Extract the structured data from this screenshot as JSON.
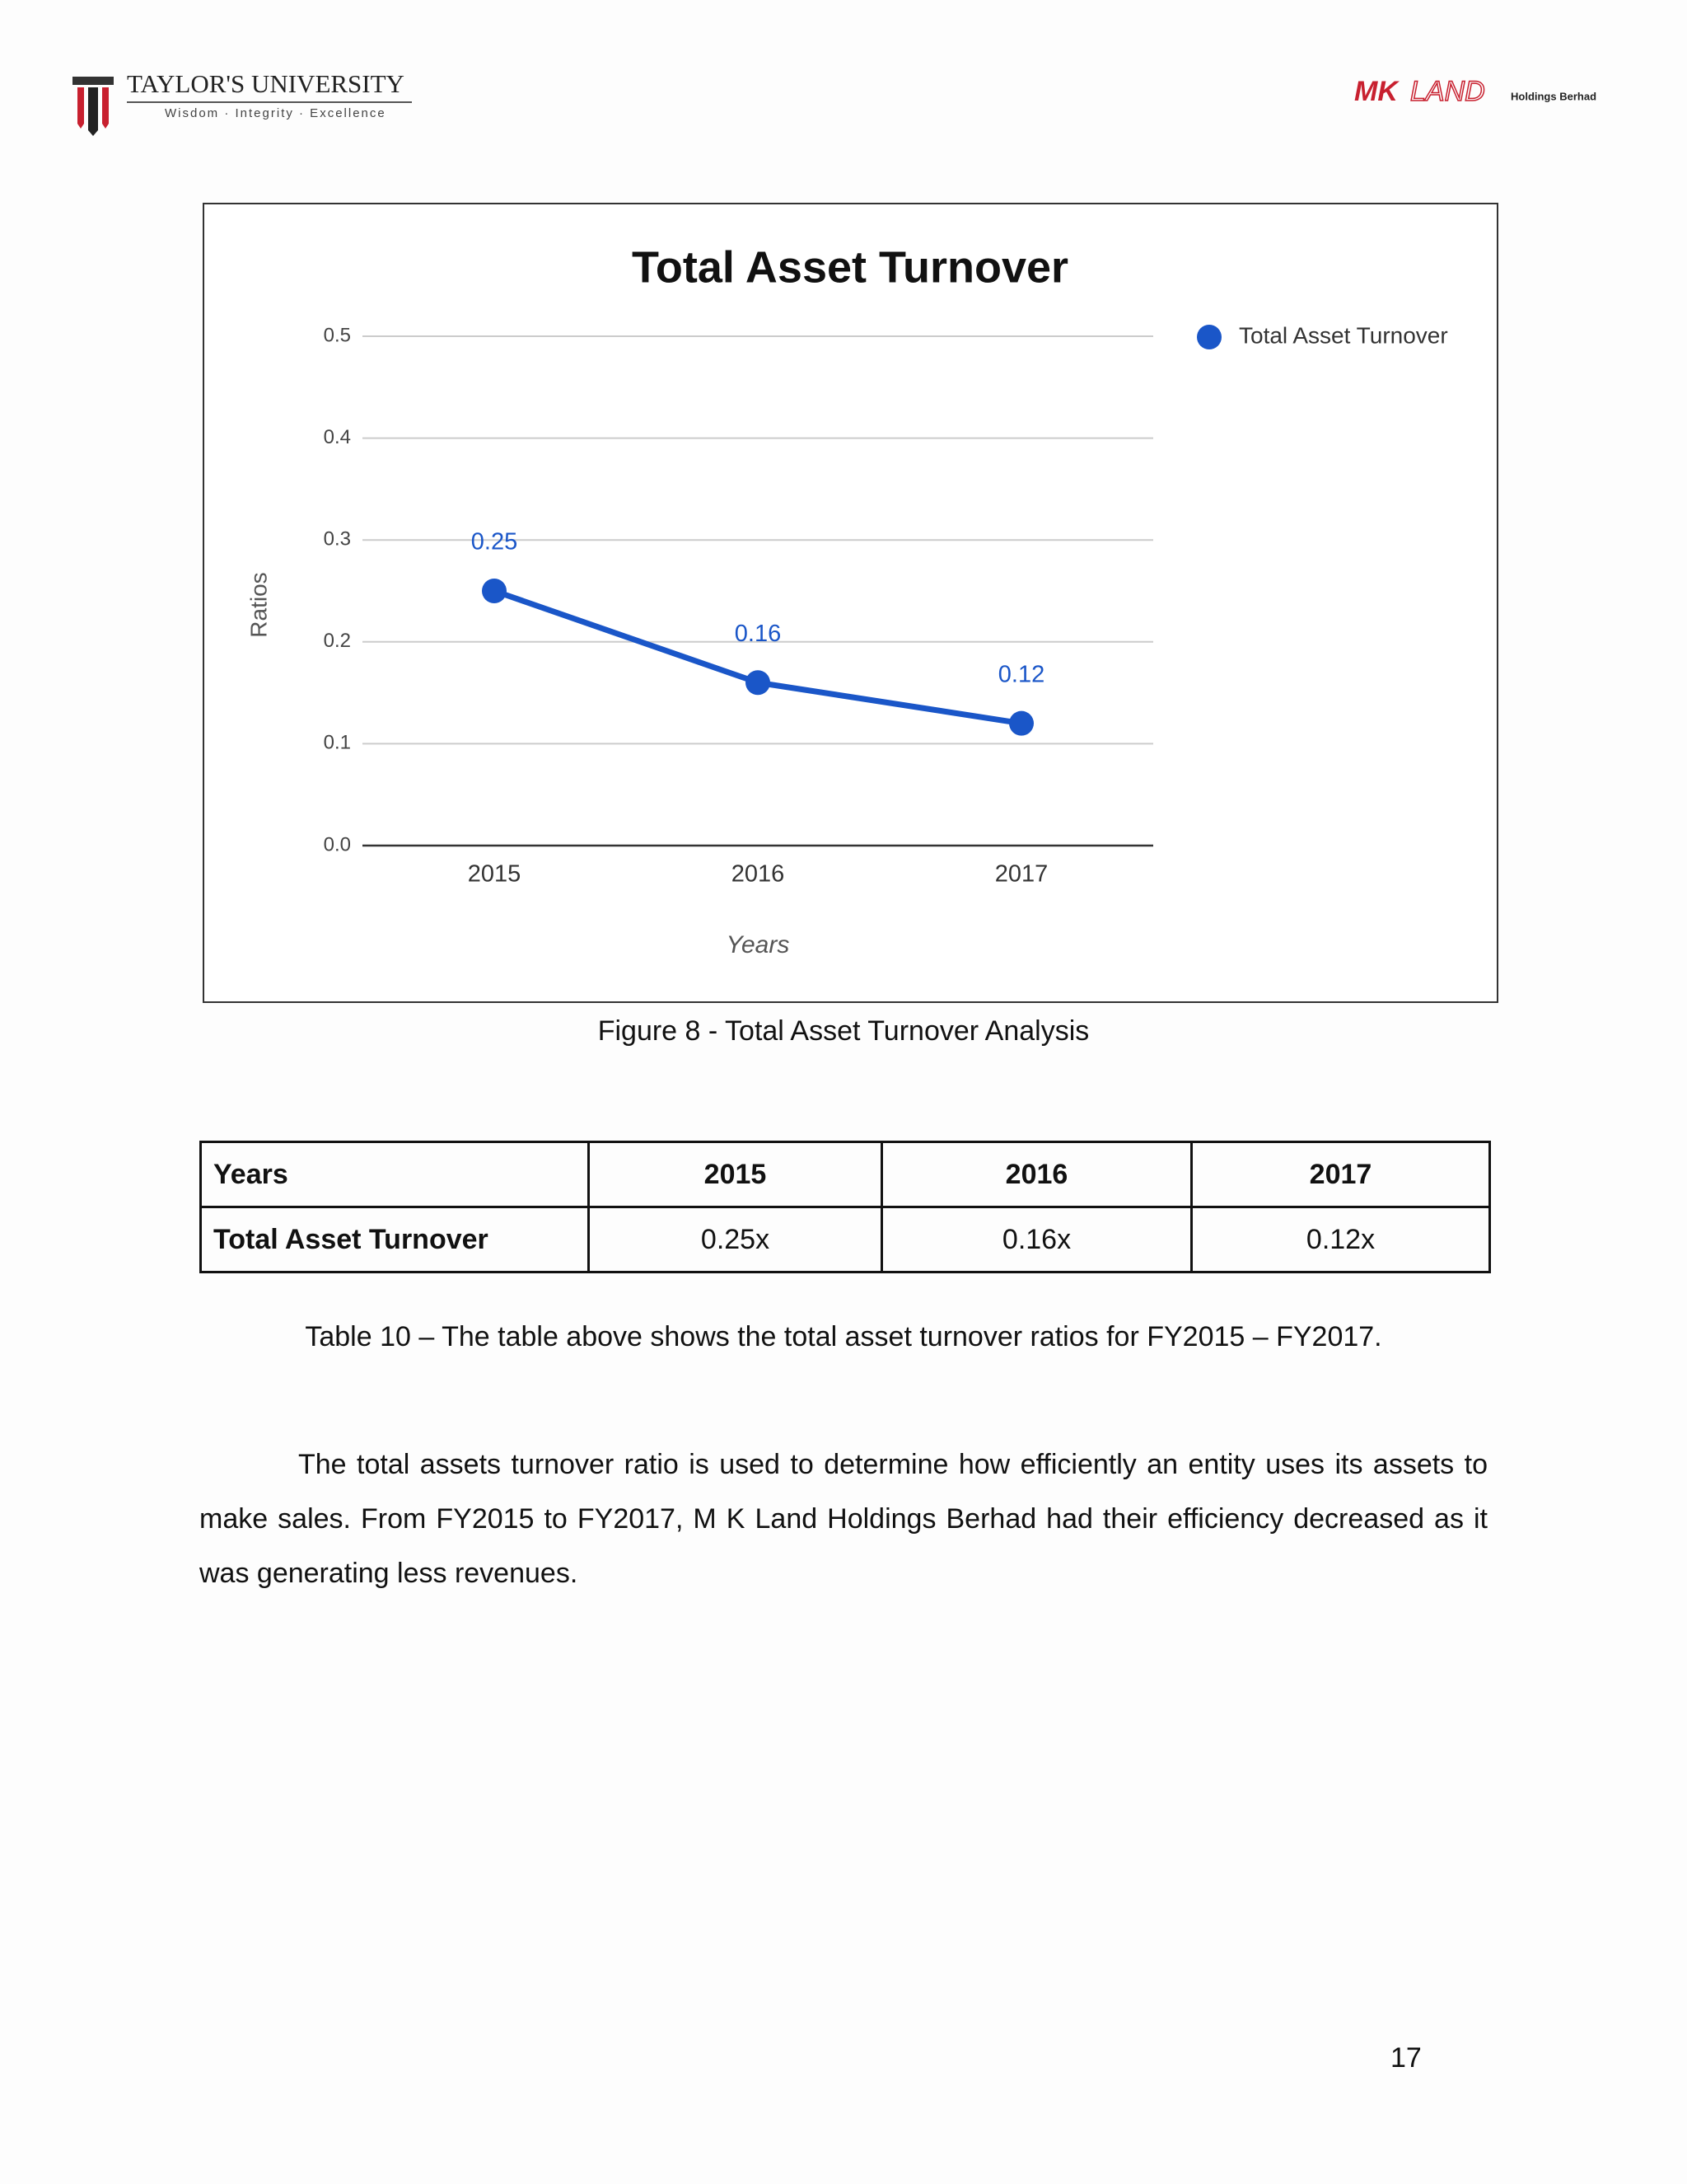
{
  "header": {
    "university": "TAYLOR'S UNIVERSITY",
    "motto": "Wisdom · Integrity · Excellence",
    "company_mark": "MK",
    "company_name": "LAND",
    "company_suffix": "Holdings Berhad"
  },
  "chart_data": {
    "type": "line",
    "title": "Total Asset Turnover",
    "x_label": "Years",
    "y_label": "Ratios",
    "categories": [
      "2015",
      "2016",
      "2017"
    ],
    "series": [
      {
        "name": "Total Asset Turnover",
        "color": "#1a56c8",
        "values": [
          0.25,
          0.16,
          0.12
        ]
      }
    ],
    "ylim": [
      0,
      0.5
    ],
    "yticks": [
      {
        "value": 0,
        "label": "0.0"
      },
      0.1,
      0.2,
      0.3,
      0.4,
      0.5
    ],
    "grid": true,
    "legend": "right"
  },
  "figure_caption": "Figure 8 - Total Asset Turnover Analysis",
  "table": {
    "header": [
      "Years",
      "2015",
      "2016",
      "2017"
    ],
    "rows": [
      [
        "Total Asset Turnover",
        "0.25x",
        "0.16x",
        "0.12x"
      ]
    ]
  },
  "table_caption": "Table 10 – The table above shows the total asset turnover ratios for FY2015 – FY2017.",
  "paragraph": "The total assets turnover ratio is used to determine how efficiently an entity uses its assets to make sales. From FY2015 to FY2017, M K Land Holdings Berhad had their efficiency decreased as it was generating less revenues.",
  "page_number": "17"
}
